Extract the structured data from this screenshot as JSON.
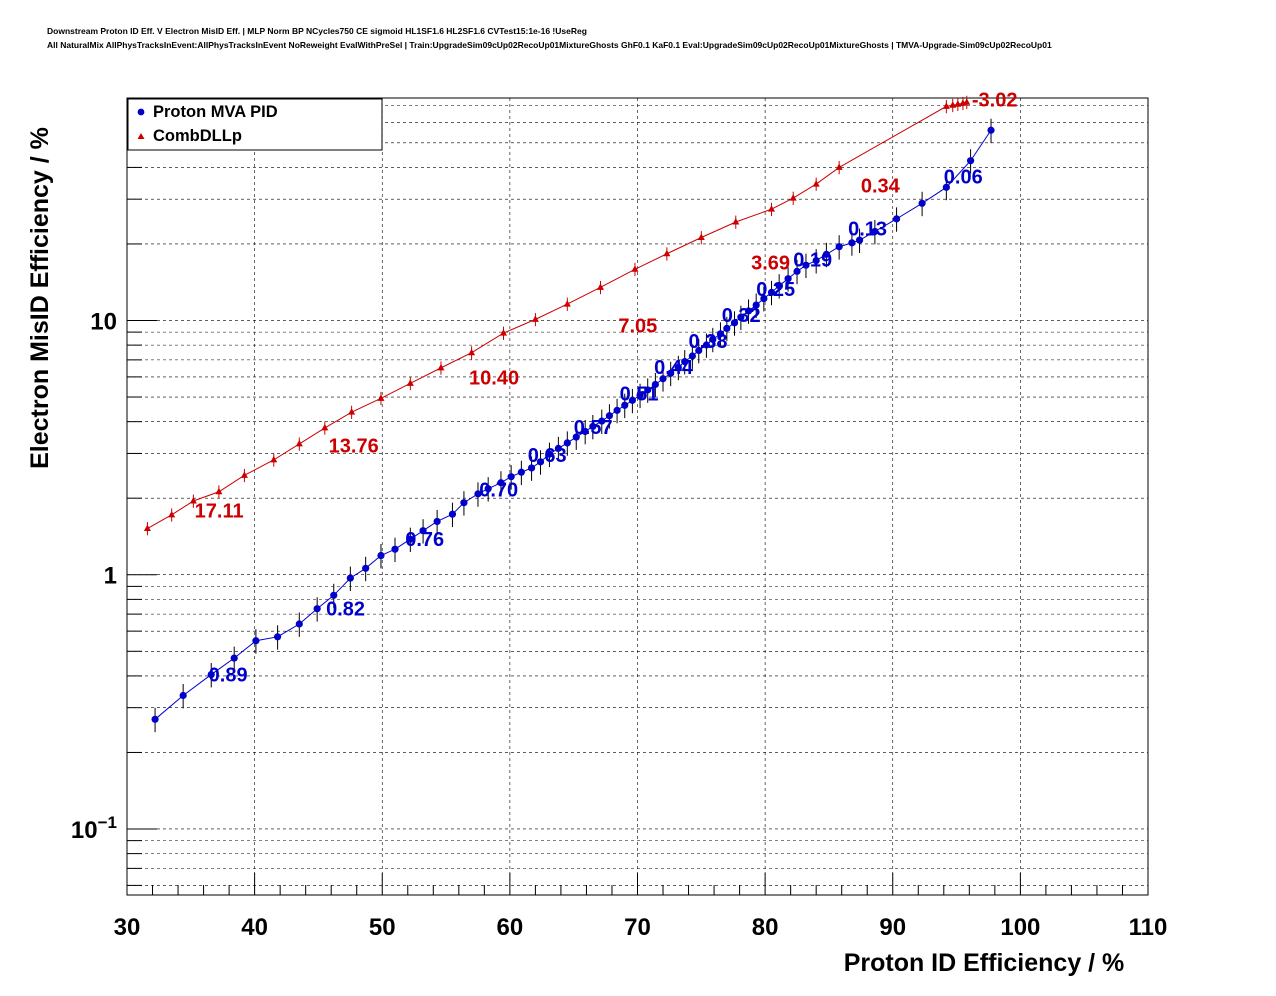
{
  "title_lines": [
    "Downstream Proton ID Eff. V Electron MisID Eff. | MLP Norm BP NCycles750 CE sigmoid HL1SF1.6 HL2SF1.6 CVTest15:1e-16 !UseReg",
    "All NaturalMix AllPhysTracksInEvent:AllPhysTracksInEvent NoReweight EvalWithPreSel | Train:UpgradeSim09cUp02RecoUp01MixtureGhosts GhF0.1 KaF0.1 Eval:UpgradeSim09cUp02RecoUp01MixtureGhosts | TMVA-Upgrade-Sim09cUp02RecoUp01"
  ],
  "chart_data": {
    "type": "scatter",
    "xlabel": "Proton ID Efficiency / %",
    "ylabel": "Electron MisID Efficiency / %",
    "xlim": [
      30,
      110
    ],
    "ylim": [
      0.055,
      75
    ],
    "yscale": "log",
    "x_ticks": [
      "30",
      "40",
      "50",
      "60",
      "70",
      "80",
      "90",
      "100",
      "110"
    ],
    "y_ticks": [
      {
        "value": 0.1,
        "base": "10",
        "exp": "−1"
      },
      {
        "value": 1,
        "base": "1",
        "exp": ""
      },
      {
        "value": 10,
        "base": "10",
        "exp": ""
      }
    ],
    "grid": true,
    "legend_position": "top-left",
    "colors": {
      "mva": "#0000cc",
      "dll": "#cc0000"
    },
    "series": [
      {
        "name": "Proton MVA PID",
        "marker": "circle",
        "x": [
          32.2,
          34.4,
          36.6,
          38.4,
          40.1,
          41.8,
          43.5,
          44.9,
          46.2,
          47.5,
          48.7,
          49.9,
          51.0,
          52.2,
          53.2,
          54.3,
          55.5,
          56.4,
          57.5,
          58.3,
          59.3,
          60.1,
          60.9,
          61.7,
          62.4,
          63.1,
          63.8,
          64.5,
          65.2,
          65.9,
          66.5,
          67.2,
          67.8,
          68.4,
          69.0,
          69.6,
          70.2,
          70.8,
          71.4,
          72.0,
          72.6,
          73.2,
          73.7,
          74.3,
          74.8,
          75.4,
          75.9,
          76.5,
          77.0,
          77.6,
          78.1,
          78.7,
          79.3,
          79.9,
          80.5,
          81.1,
          81.8,
          82.5,
          83.2,
          84.0,
          84.8,
          85.8,
          86.8,
          87.4,
          88.6,
          90.3,
          92.3,
          94.2,
          96.1,
          97.7
        ],
        "y": [
          0.27,
          0.335,
          0.405,
          0.47,
          0.55,
          0.57,
          0.64,
          0.735,
          0.83,
          0.97,
          1.06,
          1.19,
          1.26,
          1.38,
          1.49,
          1.62,
          1.73,
          1.92,
          2.08,
          2.18,
          2.3,
          2.43,
          2.53,
          2.63,
          2.78,
          2.98,
          3.14,
          3.3,
          3.48,
          3.66,
          3.83,
          4.02,
          4.22,
          4.43,
          4.64,
          4.85,
          5.08,
          5.33,
          5.6,
          5.9,
          6.2,
          6.54,
          6.89,
          7.25,
          7.62,
          8.01,
          8.43,
          8.86,
          9.31,
          9.79,
          10.3,
          10.9,
          11.5,
          12.2,
          12.9,
          13.7,
          14.6,
          15.6,
          16.5,
          17.2,
          18.2,
          19.5,
          20.2,
          20.7,
          22.4,
          25.1,
          28.9,
          33.4,
          42.5,
          56.0
        ],
        "labels": [
          {
            "x": 36.4,
            "y": 0.38,
            "text": "0.89"
          },
          {
            "x": 45.6,
            "y": 0.69,
            "text": "0.82"
          },
          {
            "x": 51.8,
            "y": 1.3,
            "text": "0.76"
          },
          {
            "x": 57.6,
            "y": 2.03,
            "text": "0.70"
          },
          {
            "x": 61.4,
            "y": 2.77,
            "text": "0.63"
          },
          {
            "x": 65.0,
            "y": 3.57,
            "text": "0.57"
          },
          {
            "x": 68.6,
            "y": 4.85,
            "text": "0.51"
          },
          {
            "x": 71.3,
            "y": 6.15,
            "text": "0.44"
          },
          {
            "x": 74.0,
            "y": 7.8,
            "text": "0.38"
          },
          {
            "x": 76.6,
            "y": 9.85,
            "text": "0.32"
          },
          {
            "x": 79.3,
            "y": 12.5,
            "text": "0.25"
          },
          {
            "x": 82.2,
            "y": 16.3,
            "text": "0.19"
          },
          {
            "x": 86.5,
            "y": 21.6,
            "text": "0.13"
          },
          {
            "x": 94.0,
            "y": 34.5,
            "text": "0.06"
          }
        ]
      },
      {
        "name": "CombDLLp",
        "marker": "triangle",
        "x": [
          31.6,
          33.5,
          35.2,
          37.2,
          39.2,
          41.5,
          43.5,
          45.5,
          47.6,
          49.9,
          52.2,
          54.6,
          57.0,
          59.5,
          62.0,
          64.5,
          67.1,
          69.8,
          72.3,
          75.0,
          77.7,
          80.5,
          82.2,
          84.0,
          85.8,
          94.2,
          94.7,
          95.1,
          95.5,
          95.8
        ],
        "y": [
          1.52,
          1.72,
          1.95,
          2.12,
          2.46,
          2.83,
          3.27,
          3.78,
          4.36,
          4.94,
          5.66,
          6.51,
          7.47,
          8.92,
          10.1,
          11.6,
          13.5,
          15.9,
          18.3,
          21.2,
          24.4,
          27.4,
          30.3,
          34.4,
          40.0,
          69.5,
          70.2,
          70.9,
          71.5,
          72.2
        ],
        "labels": [
          {
            "x": 35.3,
            "y": 1.68,
            "text": "17.11"
          },
          {
            "x": 45.8,
            "y": 3.03,
            "text": "13.76"
          },
          {
            "x": 56.8,
            "y": 5.59,
            "text": "10.40"
          },
          {
            "x": 68.5,
            "y": 8.95,
            "text": "7.05"
          },
          {
            "x": 78.9,
            "y": 15.9,
            "text": "3.69"
          },
          {
            "x": 87.5,
            "y": 31.8,
            "text": "0.34"
          },
          {
            "x": 96.2,
            "y": 69.5,
            "text": "-3.02"
          }
        ]
      }
    ]
  }
}
